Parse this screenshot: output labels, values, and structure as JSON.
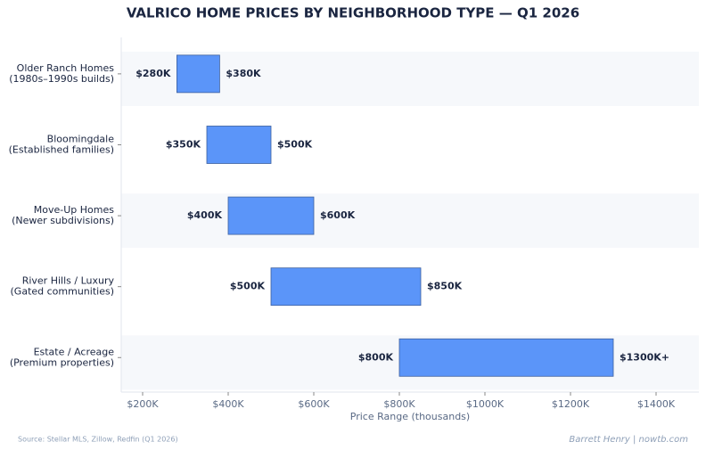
{
  "chart_data": {
    "type": "range",
    "title": "VALRICO HOME PRICES BY NEIGHBORHOOD TYPE — Q1 2026",
    "categories": [
      [
        "Older Ranch Homes",
        "(1980s–1990s builds)"
      ],
      [
        "Bloomingdale",
        "(Established families)"
      ],
      [
        "Move-Up Homes",
        "(Newer subdivisions)"
      ],
      [
        "River Hills / Luxury",
        "(Gated communities)"
      ],
      [
        "Estate / Acreage",
        "(Premium properties)"
      ]
    ],
    "series": [
      {
        "values": [
          280,
          350,
          400,
          500,
          800
        ],
        "value_labels": [
          "$280K",
          "$350K",
          "$400K",
          "$500K",
          "$800K"
        ]
      },
      {
        "values": [
          380,
          500,
          600,
          850,
          1300
        ],
        "value_labels": [
          "$380K",
          "$500K",
          "$600K",
          "$850K",
          "$1300K+"
        ]
      }
    ],
    "color": "#5b95f9",
    "xlim": [
      150,
      1500
    ],
    "xticks": [
      {
        "value": 200,
        "label": "$200K"
      },
      {
        "value": 400,
        "label": "$400K"
      },
      {
        "value": 600,
        "label": "$600K"
      },
      {
        "value": 800,
        "label": "$800K"
      },
      {
        "value": 1000,
        "label": "$1000K"
      },
      {
        "value": 1200,
        "label": "$1200K"
      },
      {
        "value": 1400,
        "label": "$1400K"
      }
    ],
    "xlabel": "Price Range (thousands)",
    "source": "Source: Stellar MLS, Zillow, Redfin (Q1 2026)",
    "credit": "Barrett Henry | nowtb.com"
  }
}
